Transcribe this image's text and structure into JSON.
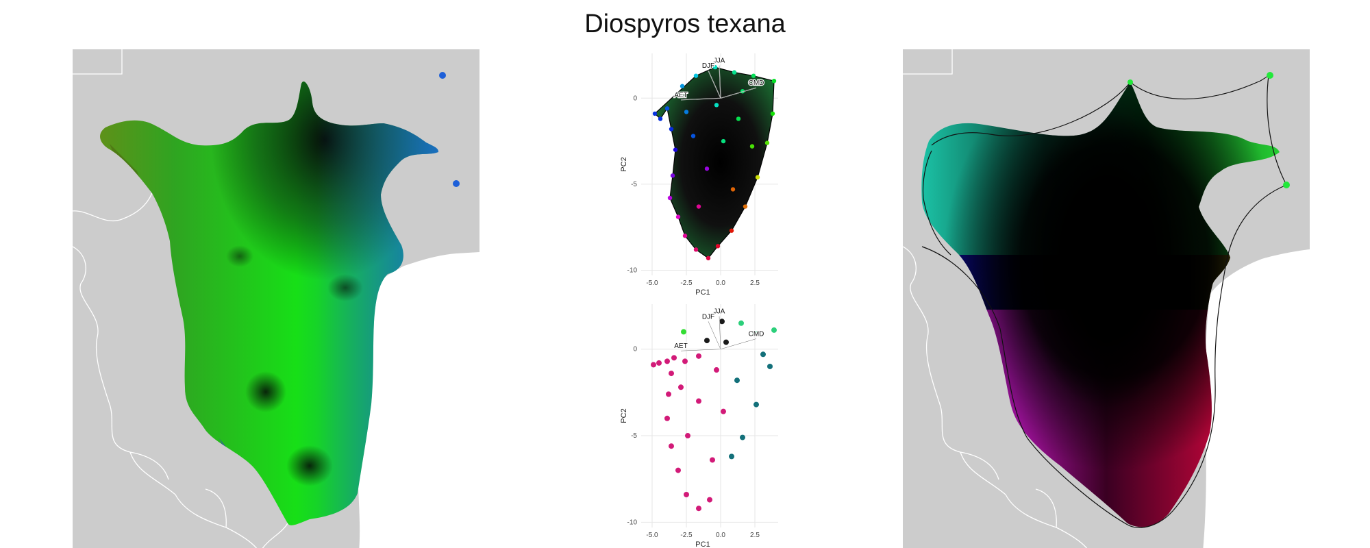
{
  "title": "Diospyros texana",
  "colors": {
    "land": "#cccccc",
    "border": "#ffffff",
    "background": "#ffffff"
  },
  "chart_data": [
    {
      "type": "scatter",
      "panel": "pca-top",
      "xlabel": "PC1",
      "ylabel": "PC2",
      "xlim": [
        -5.8,
        4.2
      ],
      "ylim": [
        -10.3,
        2.6
      ],
      "x_ticks": [
        "-5.0",
        "-2.5",
        "0.0",
        "2.5"
      ],
      "y_ticks": [
        "-10",
        "-5",
        "0"
      ],
      "x_tick_values": [
        -5,
        -2.5,
        0,
        2.5
      ],
      "y_tick_values": [
        -10,
        -5,
        0
      ],
      "grid": true,
      "vectors": [
        {
          "label": "JJA",
          "x": -0.1,
          "y": 1.9
        },
        {
          "label": "DJF",
          "x": -0.9,
          "y": 1.6
        },
        {
          "label": "CMD",
          "x": 2.6,
          "y": 0.6
        },
        {
          "label": "AET",
          "x": -2.9,
          "y": -0.1
        }
      ],
      "points": [
        {
          "x": -4.8,
          "y": -0.9
        },
        {
          "x": -4.4,
          "y": -1.2
        },
        {
          "x": -3.9,
          "y": -0.6
        },
        {
          "x": -3.6,
          "y": -1.8
        },
        {
          "x": -3.3,
          "y": -3.0
        },
        {
          "x": -3.5,
          "y": -4.5
        },
        {
          "x": -3.7,
          "y": -5.8
        },
        {
          "x": -3.1,
          "y": -6.9
        },
        {
          "x": -2.6,
          "y": -8.0
        },
        {
          "x": -1.8,
          "y": -8.8
        },
        {
          "x": -0.9,
          "y": -9.3
        },
        {
          "x": -0.2,
          "y": -8.6
        },
        {
          "x": 0.8,
          "y": -7.7
        },
        {
          "x": 1.8,
          "y": -6.3
        },
        {
          "x": 2.7,
          "y": -4.6
        },
        {
          "x": 3.4,
          "y": -2.6
        },
        {
          "x": 3.8,
          "y": -0.9
        },
        {
          "x": 3.9,
          "y": 1.0
        },
        {
          "x": 2.4,
          "y": 1.3
        },
        {
          "x": 1.0,
          "y": 1.5
        },
        {
          "x": -0.4,
          "y": 1.8
        },
        {
          "x": -1.8,
          "y": 1.3
        },
        {
          "x": -2.8,
          "y": 0.7
        },
        {
          "x": -2.0,
          "y": -2.2
        },
        {
          "x": -1.0,
          "y": -4.1
        },
        {
          "x": 0.2,
          "y": -2.5
        },
        {
          "x": 1.3,
          "y": -1.2
        },
        {
          "x": 2.3,
          "y": -2.8
        },
        {
          "x": -1.6,
          "y": -6.3
        },
        {
          "x": 0.9,
          "y": -5.3
        },
        {
          "x": -2.5,
          "y": -0.8
        },
        {
          "x": 1.6,
          "y": 0.4
        },
        {
          "x": -0.3,
          "y": -0.4
        }
      ]
    },
    {
      "type": "scatter",
      "panel": "pca-bottom",
      "xlabel": "PC1",
      "ylabel": "PC2",
      "xlim": [
        -5.8,
        4.2
      ],
      "ylim": [
        -10.3,
        2.6
      ],
      "x_ticks": [
        "-5.0",
        "-2.5",
        "0.0",
        "2.5"
      ],
      "y_ticks": [
        "-10",
        "-5",
        "0"
      ],
      "x_tick_values": [
        -5,
        -2.5,
        0,
        2.5
      ],
      "y_tick_values": [
        -10,
        -5,
        0
      ],
      "grid": true,
      "vectors": [
        {
          "label": "JJA",
          "x": -0.1,
          "y": 1.9
        },
        {
          "label": "DJF",
          "x": -0.9,
          "y": 1.6
        },
        {
          "label": "CMD",
          "x": 2.6,
          "y": 0.6
        },
        {
          "label": "AET",
          "x": -2.9,
          "y": -0.1
        }
      ],
      "points": [
        {
          "x": -4.9,
          "y": -0.9
        },
        {
          "x": -4.5,
          "y": -0.8
        },
        {
          "x": -3.9,
          "y": -0.7
        },
        {
          "x": -3.4,
          "y": -0.5
        },
        {
          "x": -2.6,
          "y": -0.7
        },
        {
          "x": -1.6,
          "y": -0.4
        },
        {
          "x": -3.6,
          "y": -1.4
        },
        {
          "x": -3.8,
          "y": -2.6
        },
        {
          "x": -3.9,
          "y": -4.0
        },
        {
          "x": -3.6,
          "y": -5.6
        },
        {
          "x": -3.1,
          "y": -7.0
        },
        {
          "x": -2.5,
          "y": -8.4
        },
        {
          "x": -1.6,
          "y": -9.2
        },
        {
          "x": -0.8,
          "y": -8.7
        },
        {
          "x": -2.4,
          "y": -5.0
        },
        {
          "x": -1.6,
          "y": -3.0
        },
        {
          "x": -2.9,
          "y": -2.2
        },
        {
          "x": -0.6,
          "y": -6.4
        },
        {
          "x": -1.0,
          "y": 0.5
        },
        {
          "x": -2.7,
          "y": 1.0
        },
        {
          "x": 0.1,
          "y": 1.6
        },
        {
          "x": 1.5,
          "y": 1.5
        },
        {
          "x": 0.4,
          "y": 0.4
        },
        {
          "x": 2.5,
          "y": 0.9
        },
        {
          "x": 3.9,
          "y": 1.1
        },
        {
          "x": 3.6,
          "y": -1.0
        },
        {
          "x": 2.6,
          "y": -3.2
        },
        {
          "x": 1.6,
          "y": -5.1
        },
        {
          "x": 0.8,
          "y": -6.2
        },
        {
          "x": 1.2,
          "y": -1.8
        },
        {
          "x": 0.2,
          "y": -3.6
        },
        {
          "x": -0.3,
          "y": -1.2
        },
        {
          "x": 3.1,
          "y": -0.3
        }
      ]
    }
  ]
}
